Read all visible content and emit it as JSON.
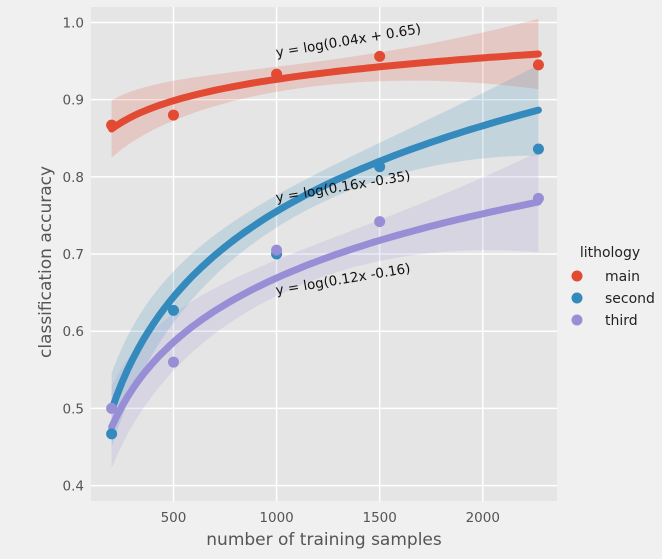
{
  "chart_data": {
    "type": "scatter",
    "xlabel": "number of training samples",
    "ylabel": "classification accuracy",
    "xlim": [
      100,
      2360
    ],
    "ylim": [
      0.38,
      1.02
    ],
    "xticks": [
      500,
      1000,
      1500,
      2000
    ],
    "yticks": [
      0.4,
      0.5,
      0.6,
      0.7,
      0.8,
      0.9,
      1.0
    ],
    "xtick_labels": [
      "500",
      "1000",
      "1500",
      "2000"
    ],
    "ytick_labels": [
      "0.4",
      "0.5",
      "0.6",
      "0.7",
      "0.8",
      "0.9",
      "1.0"
    ],
    "grid": true,
    "legend": {
      "title": "lithology",
      "placement": "right",
      "labels": [
        "main",
        "second",
        "third"
      ]
    },
    "series": [
      {
        "name": "main",
        "color": "#E24A33",
        "fit": {
          "a": 0.04,
          "b": 0.65
        },
        "points": [
          {
            "x": 200,
            "y": 0.867
          },
          {
            "x": 500,
            "y": 0.88
          },
          {
            "x": 1000,
            "y": 0.933
          },
          {
            "x": 1500,
            "y": 0.956
          },
          {
            "x": 2270,
            "y": 0.945
          }
        ]
      },
      {
        "name": "second",
        "color": "#348ABD",
        "fit": {
          "a": 0.16,
          "b": -0.35
        },
        "points": [
          {
            "x": 200,
            "y": 0.467
          },
          {
            "x": 500,
            "y": 0.627
          },
          {
            "x": 1000,
            "y": 0.7
          },
          {
            "x": 1500,
            "y": 0.813
          },
          {
            "x": 2270,
            "y": 0.836
          }
        ]
      },
      {
        "name": "third",
        "color": "#988ED5",
        "fit": {
          "a": 0.12,
          "b": -0.16
        },
        "points": [
          {
            "x": 200,
            "y": 0.5
          },
          {
            "x": 500,
            "y": 0.56
          },
          {
            "x": 1000,
            "y": 0.705
          },
          {
            "x": 1500,
            "y": 0.742
          },
          {
            "x": 2270,
            "y": 0.772
          }
        ]
      }
    ],
    "annotations": [
      {
        "text": "y = log(0.04x + 0.65)",
        "x": 1000,
        "y": 0.955,
        "color": "#111111"
      },
      {
        "text": "y = log(0.16x -0.35)",
        "x": 1000,
        "y": 0.767,
        "color": "#111111"
      },
      {
        "text": "y = log(0.12x -0.16)",
        "x": 1000,
        "y": 0.647,
        "color": "#111111"
      }
    ]
  }
}
